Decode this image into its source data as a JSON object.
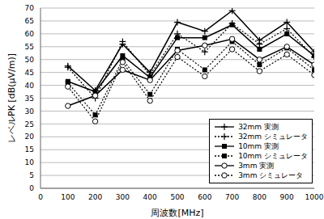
{
  "chart_data": {
    "type": "line",
    "x_label": "周波数[MHz]",
    "y_label": "レベルPK [dB(μV/m)]",
    "x": [
      100,
      200,
      300,
      400,
      500,
      600,
      700,
      800,
      900,
      1000
    ],
    "xlim": [
      0,
      1000
    ],
    "xticks": [
      0,
      100,
      200,
      300,
      400,
      500,
      600,
      700,
      800,
      900,
      1000
    ],
    "ylim": [
      0,
      70
    ],
    "yticks": [
      0,
      5,
      10,
      15,
      20,
      25,
      30,
      35,
      40,
      45,
      50,
      55,
      60,
      65,
      70
    ],
    "grid": true,
    "legend": "lower right",
    "series": [
      {
        "name": "32mm 実測",
        "color": "#000000",
        "marker": "plus",
        "line_style": "solid",
        "values": [
          47.5,
          38,
          56,
          45,
          64.5,
          61,
          69,
          57.5,
          64.5,
          53
        ]
      },
      {
        "name": "32mm シミュレータ",
        "color": "#000000",
        "marker": "plus",
        "line_style": "dotted",
        "values": [
          47,
          35,
          57,
          44,
          60,
          53,
          64,
          56,
          62,
          51
        ]
      },
      {
        "name": "10mm 実測",
        "color": "#000000",
        "marker": "square",
        "line_style": "solid",
        "values": [
          41.5,
          37.5,
          51.5,
          43,
          58.5,
          58.5,
          63.5,
          54,
          60,
          51.5
        ]
      },
      {
        "name": "10mm シミュレータ",
        "color": "#000000",
        "marker": "square",
        "line_style": "dotted",
        "values": [
          41,
          28.5,
          50,
          36.5,
          54,
          46,
          57,
          48,
          54.5,
          46
        ]
      },
      {
        "name": "3mm 実測",
        "color": "#000000",
        "marker": "circle",
        "line_style": "solid",
        "values": [
          32,
          36,
          46,
          42,
          53.5,
          55.5,
          58,
          50,
          55,
          48
        ]
      },
      {
        "name": "3mm シミュレータ",
        "color": "#000000",
        "marker": "circle",
        "line_style": "dotted",
        "values": [
          39.5,
          26,
          49,
          34,
          51,
          43.5,
          54,
          45.5,
          52,
          44
        ]
      }
    ]
  }
}
